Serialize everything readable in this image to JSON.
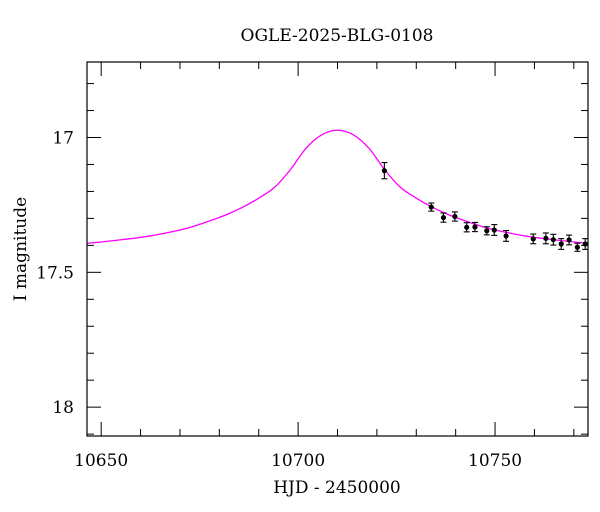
{
  "chart_data": {
    "type": "scatter",
    "title": "OGLE-2025-BLG-0108",
    "xlabel": "HJD - 2450000",
    "ylabel": "I magnitude",
    "xlim": [
      10646.4,
      10773.6
    ],
    "ylim": [
      18.107,
      16.72
    ],
    "y_inverted": true,
    "x_major_ticks": [
      10650,
      10700,
      10750
    ],
    "x_tick_labels": [
      "10650",
      "10700",
      "10750"
    ],
    "x_minor_step": 10,
    "y_major_ticks": [
      17,
      17.5,
      18
    ],
    "y_tick_labels": [
      "17",
      "17.5",
      "18"
    ],
    "y_minor_step": 0.1,
    "grid": false,
    "colors": {
      "model": "#ff00ff",
      "points": "#000000"
    },
    "model": [
      [
        10646,
        17.393
      ],
      [
        10654,
        17.381
      ],
      [
        10662,
        17.366
      ],
      [
        10670,
        17.343
      ],
      [
        10674,
        17.327
      ],
      [
        10678,
        17.307
      ],
      [
        10682,
        17.285
      ],
      [
        10686,
        17.258
      ],
      [
        10690,
        17.225
      ],
      [
        10694,
        17.185
      ],
      [
        10698,
        17.12
      ],
      [
        10702,
        17.04
      ],
      [
        10706,
        16.99
      ],
      [
        10710,
        16.973
      ],
      [
        10714,
        16.99
      ],
      [
        10718,
        17.04
      ],
      [
        10722,
        17.12
      ],
      [
        10726,
        17.185
      ],
      [
        10730,
        17.225
      ],
      [
        10734,
        17.258
      ],
      [
        10738,
        17.285
      ],
      [
        10742,
        17.307
      ],
      [
        10746,
        17.327
      ],
      [
        10750,
        17.343
      ],
      [
        10758,
        17.366
      ],
      [
        10766,
        17.381
      ],
      [
        10774,
        17.393
      ]
    ],
    "points": [
      {
        "x": 10721.9,
        "y": 17.123,
        "err": 0.03
      },
      {
        "x": 10733.8,
        "y": 17.258,
        "err": 0.015
      },
      {
        "x": 10736.9,
        "y": 17.297,
        "err": 0.017
      },
      {
        "x": 10739.8,
        "y": 17.293,
        "err": 0.017
      },
      {
        "x": 10742.8,
        "y": 17.333,
        "err": 0.017
      },
      {
        "x": 10744.9,
        "y": 17.332,
        "err": 0.017
      },
      {
        "x": 10747.9,
        "y": 17.346,
        "err": 0.015
      },
      {
        "x": 10749.8,
        "y": 17.343,
        "err": 0.02
      },
      {
        "x": 10752.8,
        "y": 17.365,
        "err": 0.02
      },
      {
        "x": 10759.7,
        "y": 17.376,
        "err": 0.018
      },
      {
        "x": 10762.9,
        "y": 17.374,
        "err": 0.02
      },
      {
        "x": 10764.8,
        "y": 17.379,
        "err": 0.02
      },
      {
        "x": 10766.8,
        "y": 17.395,
        "err": 0.02
      },
      {
        "x": 10768.8,
        "y": 17.38,
        "err": 0.018
      },
      {
        "x": 10770.9,
        "y": 17.407,
        "err": 0.015
      },
      {
        "x": 10772.9,
        "y": 17.395,
        "err": 0.02
      }
    ]
  }
}
